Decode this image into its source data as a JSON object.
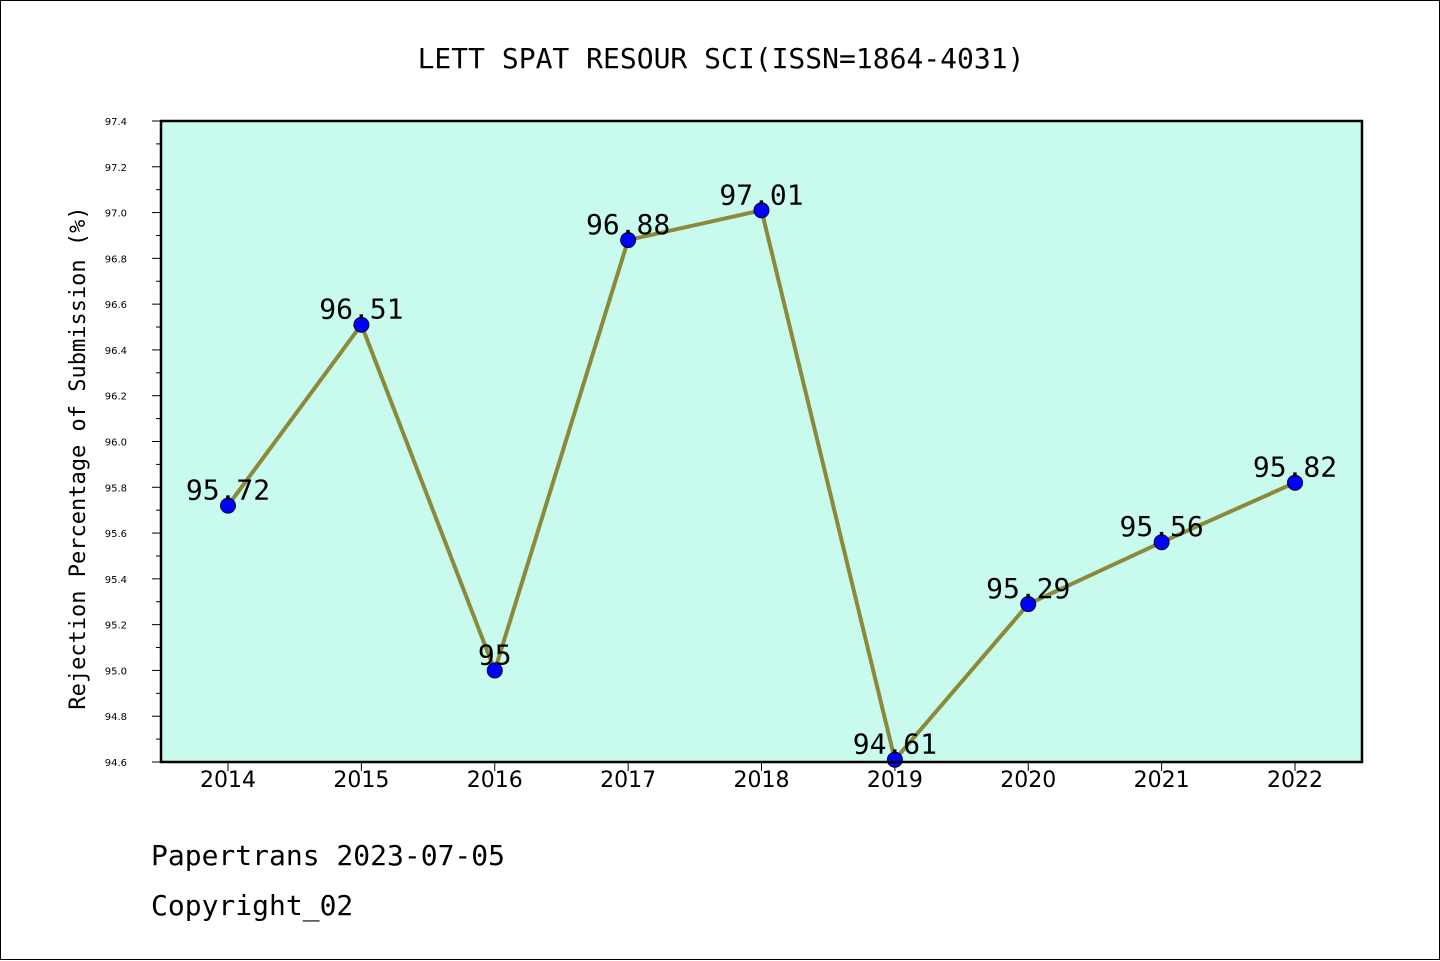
{
  "chart_data": {
    "type": "line",
    "title": "LETT SPAT RESOUR SCI(ISSN=1864-4031)",
    "xlabel": "",
    "ylabel": "Rejection Percentage of Submission (%)",
    "categories": [
      "2014",
      "2015",
      "2016",
      "2017",
      "2018",
      "2019",
      "2020",
      "2021",
      "2022"
    ],
    "series": [
      {
        "values": [
          95.72,
          96.51,
          95,
          96.88,
          97.01,
          94.61,
          95.29,
          95.56,
          95.82
        ],
        "labels": [
          "95.72",
          "96.51",
          "95",
          "96.88",
          "97.01",
          "94.61",
          "95.29",
          "95.56",
          "95.82"
        ]
      }
    ],
    "ylim": [
      94.6,
      97.4
    ],
    "yticks": [
      "94.6",
      "94.8",
      "95.0",
      "95.2",
      "95.4",
      "95.6",
      "95.8",
      "96.0",
      "96.2",
      "96.4",
      "96.6",
      "96.8",
      "97.0",
      "97.2",
      "97.4"
    ],
    "grid": false,
    "legend": "none",
    "colors": {
      "plot_background": "#c8fbee",
      "line": "#8b8a3a",
      "marker": "#0000ff",
      "axis": "#000000"
    }
  },
  "footer": {
    "line1": "Papertrans 2023-07-05",
    "line2": "Copyright_02"
  }
}
